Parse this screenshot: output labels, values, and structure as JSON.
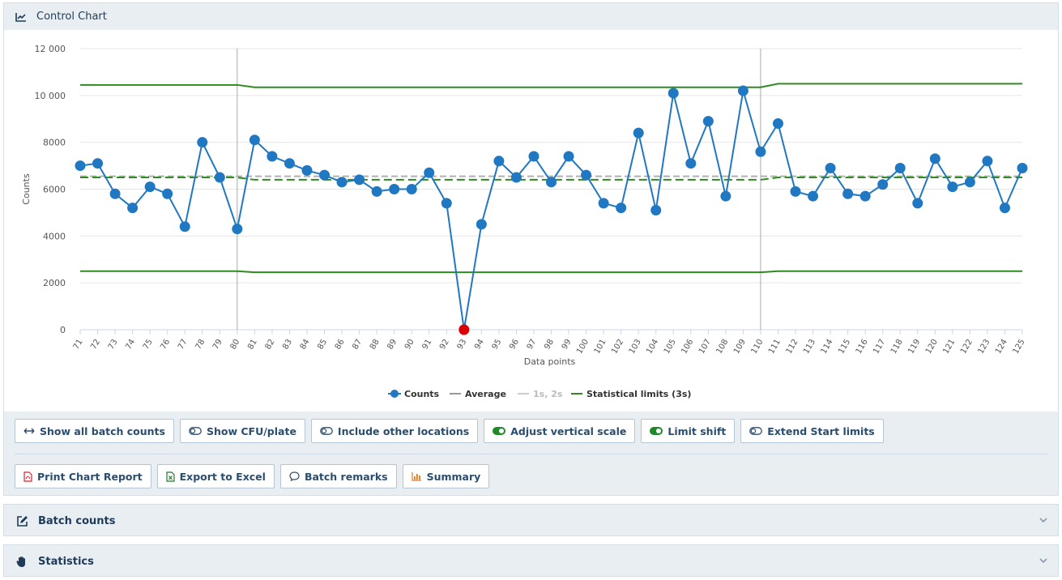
{
  "header": {
    "title": "Control Chart"
  },
  "chart_data": {
    "type": "line",
    "ylabel": "Counts",
    "xlabel": "Data points",
    "ylim": [
      0,
      12000
    ],
    "yticks": [
      0,
      2000,
      4000,
      6000,
      8000,
      10000,
      12000
    ],
    "ytick_labels": [
      "0",
      "2000",
      "4000",
      "6000",
      "8000",
      "10 000",
      "12 000"
    ],
    "x": [
      71,
      72,
      73,
      74,
      75,
      76,
      77,
      78,
      79,
      80,
      81,
      82,
      83,
      84,
      85,
      86,
      87,
      88,
      89,
      90,
      91,
      92,
      93,
      94,
      95,
      96,
      97,
      98,
      99,
      100,
      101,
      102,
      103,
      104,
      105,
      106,
      107,
      108,
      109,
      110,
      111,
      112,
      113,
      114,
      115,
      116,
      117,
      118,
      119,
      120,
      121,
      122,
      123,
      124,
      125
    ],
    "series": [
      {
        "name": "Counts",
        "values": [
          7000,
          7100,
          5800,
          5200,
          6100,
          5800,
          4400,
          8000,
          6500,
          4300,
          8100,
          7400,
          7100,
          6800,
          6600,
          6300,
          6400,
          5900,
          6000,
          6000,
          6700,
          5400,
          0,
          4500,
          7200,
          6500,
          7400,
          6300,
          7400,
          6600,
          5400,
          5200,
          8400,
          5100,
          10100,
          7100,
          8900,
          5700,
          10200,
          7600,
          8800,
          5900,
          5700,
          6900,
          5800,
          5700,
          6200,
          6900,
          5400,
          7300,
          6100,
          6300,
          7200,
          5200,
          6900
        ]
      }
    ],
    "out_of_control_points": [
      93
    ],
    "average": [
      {
        "from": 71,
        "to": 80,
        "value": 6500
      },
      {
        "from": 81,
        "to": 110,
        "value": 6400
      },
      {
        "from": 111,
        "to": 125,
        "value": 6500
      }
    ],
    "one_two_sigma_line": 6550,
    "ucl": [
      {
        "from": 71,
        "to": 80,
        "value": 10450
      },
      {
        "from": 81,
        "to": 110,
        "value": 10350
      },
      {
        "from": 111,
        "to": 125,
        "value": 10500
      }
    ],
    "lcl": [
      {
        "from": 71,
        "to": 80,
        "value": 2500
      },
      {
        "from": 81,
        "to": 110,
        "value": 2450
      },
      {
        "from": 111,
        "to": 125,
        "value": 2500
      }
    ],
    "shift_markers": [
      80,
      110
    ],
    "legend": [
      {
        "label": "Counts",
        "color": "#1f78c1",
        "marker": "circle"
      },
      {
        "label": "Average",
        "color": "#999999",
        "marker": "line"
      },
      {
        "label": "1s, 2s",
        "color": "#cccccc",
        "marker": "line",
        "muted": true
      },
      {
        "label": "Statistical limits (3s)",
        "color": "#2e8b1f",
        "marker": "line"
      }
    ],
    "legend_position": "bottom-center",
    "grid": true
  },
  "colors": {
    "series": "#1f78c1",
    "out_of_control": "#dd0000",
    "limits": "#2e8b1f",
    "average": "#2e8b1f",
    "average_gray": "#b0b0b0"
  },
  "toolbar": {
    "row1": [
      {
        "label": "Show all batch counts",
        "icon": "arrows-horizontal-icon"
      },
      {
        "label": "Show CFU/plate",
        "icon": "toggle-off-icon"
      },
      {
        "label": "Include other locations",
        "icon": "toggle-off-icon"
      },
      {
        "label": "Adjust vertical scale",
        "icon": "toggle-on-icon"
      },
      {
        "label": "Limit shift",
        "icon": "toggle-on-icon"
      },
      {
        "label": "Extend Start limits",
        "icon": "toggle-off-icon"
      }
    ],
    "row2": [
      {
        "label": "Print Chart Report",
        "icon": "pdf-file-icon"
      },
      {
        "label": "Export to Excel",
        "icon": "excel-file-icon"
      },
      {
        "label": "Batch remarks",
        "icon": "comment-icon"
      },
      {
        "label": "Summary",
        "icon": "bar-chart-icon"
      }
    ]
  },
  "sections": {
    "batch_counts": "Batch counts",
    "statistics": "Statistics"
  }
}
